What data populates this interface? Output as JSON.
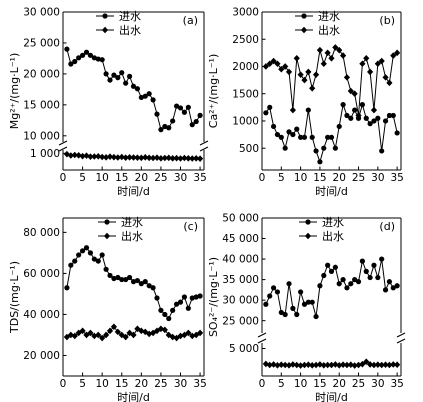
{
  "legend": {
    "inflow": "进水",
    "outflow": "出水"
  },
  "chart_data": [
    {
      "type": "line",
      "panel_label": "(a)",
      "xlabel": "时间/d",
      "ylabel": "Mg²⁺/(mg·L⁻¹)",
      "x_ticks": [
        "0",
        "5",
        "10",
        "15",
        "20",
        "25",
        "30",
        "35"
      ],
      "xlim": [
        0,
        36
      ],
      "axis_break": true,
      "upper_ylim": [
        9000,
        30000
      ],
      "upper_ticks": [
        {
          "v": 10000,
          "label": "10 000"
        },
        {
          "v": 15000,
          "label": "15 000"
        },
        {
          "v": 20000,
          "label": "20 000"
        },
        {
          "v": 25000,
          "label": "25 000"
        },
        {
          "v": 30000,
          "label": "30 000"
        }
      ],
      "lower_ylim": [
        0,
        1200
      ],
      "lower_ticks": [
        {
          "v": 1000,
          "label": "1 000"
        }
      ],
      "series": [
        {
          "name": "进水",
          "marker": "circle",
          "x": [
            1,
            2,
            3,
            4,
            5,
            6,
            7,
            8,
            9,
            10,
            11,
            12,
            13,
            14,
            15,
            16,
            17,
            18,
            19,
            20,
            21,
            22,
            23,
            24,
            25,
            26,
            27,
            28,
            29,
            30,
            31,
            32,
            33,
            34,
            35
          ],
          "y": [
            24000,
            21600,
            22000,
            22600,
            23000,
            23500,
            23000,
            22600,
            22400,
            22300,
            20000,
            19000,
            19800,
            19400,
            20200,
            18500,
            19600,
            18000,
            17600,
            16200,
            16400,
            16800,
            15800,
            13500,
            11000,
            11500,
            11300,
            12400,
            14800,
            14500,
            13800,
            14600,
            11800,
            12300,
            13300
          ]
        },
        {
          "name": "出水",
          "marker": "diamond",
          "x": [
            1,
            2,
            3,
            4,
            5,
            6,
            7,
            8,
            9,
            10,
            11,
            12,
            13,
            14,
            15,
            16,
            17,
            18,
            19,
            20,
            21,
            22,
            23,
            24,
            25,
            26,
            27,
            28,
            29,
            30,
            31,
            32,
            33,
            34,
            35
          ],
          "y": [
            950,
            870,
            900,
            880,
            830,
            860,
            800,
            810,
            820,
            780,
            760,
            800,
            770,
            750,
            780,
            740,
            760,
            750,
            740,
            730,
            760,
            730,
            720,
            740,
            700,
            720,
            730,
            700,
            710,
            690,
            720,
            700,
            690,
            700,
            680
          ]
        }
      ]
    },
    {
      "type": "line",
      "panel_label": "(b)",
      "xlabel": "时间/d",
      "ylabel": "Ca²⁺/(mg·L⁻¹)",
      "x_ticks": [
        "0",
        "5",
        "10",
        "15",
        "20",
        "25",
        "30",
        "35"
      ],
      "xlim": [
        0,
        36
      ],
      "ylim": [
        100,
        3000
      ],
      "y_ticks": [
        {
          "v": 500,
          "label": "500"
        },
        {
          "v": 1000,
          "label": "1000"
        },
        {
          "v": 1500,
          "label": "1500"
        },
        {
          "v": 2000,
          "label": "2000"
        },
        {
          "v": 2500,
          "label": "2500"
        },
        {
          "v": 3000,
          "label": "3000"
        }
      ],
      "series": [
        {
          "name": "进水",
          "marker": "circle",
          "x": [
            1,
            2,
            3,
            4,
            5,
            6,
            7,
            8,
            9,
            10,
            11,
            12,
            13,
            14,
            15,
            16,
            17,
            18,
            19,
            20,
            21,
            22,
            23,
            24,
            25,
            26,
            27,
            28,
            29,
            30,
            31,
            32,
            33,
            34,
            35
          ],
          "y": [
            1150,
            1250,
            900,
            750,
            700,
            500,
            800,
            750,
            850,
            700,
            700,
            1200,
            700,
            450,
            250,
            500,
            700,
            700,
            500,
            900,
            1300,
            1100,
            1050,
            1200,
            1050,
            1300,
            1050,
            950,
            1000,
            1050,
            450,
            1000,
            1100,
            1100,
            780
          ]
        },
        {
          "name": "出水",
          "marker": "diamond",
          "x": [
            1,
            2,
            3,
            4,
            5,
            6,
            7,
            8,
            9,
            10,
            11,
            12,
            13,
            14,
            15,
            16,
            17,
            18,
            19,
            20,
            21,
            22,
            23,
            24,
            25,
            26,
            27,
            28,
            29,
            30,
            31,
            32,
            33,
            34,
            35
          ],
          "y": [
            2000,
            2050,
            2100,
            2050,
            1950,
            2000,
            1900,
            1200,
            2150,
            1850,
            1750,
            1900,
            1600,
            1850,
            2300,
            2050,
            2250,
            2150,
            2350,
            2300,
            2200,
            1800,
            1550,
            1500,
            1100,
            2050,
            2150,
            1900,
            1200,
            2050,
            2100,
            1800,
            1700,
            2200,
            2250
          ]
        }
      ]
    },
    {
      "type": "line",
      "panel_label": "(c)",
      "xlabel": "时间/d",
      "ylabel": "TDS/(mg·L⁻¹)",
      "x_ticks": [
        "0",
        "5",
        "10",
        "15",
        "20",
        "25",
        "30",
        "35"
      ],
      "xlim": [
        0,
        36
      ],
      "ylim": [
        10000,
        87000
      ],
      "y_ticks": [
        {
          "v": 20000,
          "label": "20 000"
        },
        {
          "v": 40000,
          "label": "40 000"
        },
        {
          "v": 60000,
          "label": "60 000"
        },
        {
          "v": 80000,
          "label": "80 000"
        }
      ],
      "series": [
        {
          "name": "进水",
          "marker": "circle",
          "x": [
            1,
            2,
            3,
            4,
            5,
            6,
            7,
            8,
            9,
            10,
            11,
            12,
            13,
            14,
            15,
            16,
            17,
            18,
            19,
            20,
            21,
            22,
            23,
            24,
            25,
            26,
            27,
            28,
            29,
            30,
            31,
            32,
            33,
            34,
            35
          ],
          "y": [
            53000,
            64000,
            66000,
            69000,
            71000,
            72500,
            70000,
            67000,
            66000,
            69000,
            62000,
            59000,
            57500,
            58000,
            57000,
            57000,
            58000,
            56000,
            56500,
            55000,
            56000,
            54000,
            53000,
            48000,
            42000,
            40000,
            38000,
            42000,
            45000,
            46000,
            48500,
            43000,
            48000,
            48500,
            49000
          ]
        },
        {
          "name": "出水",
          "marker": "diamond",
          "x": [
            1,
            2,
            3,
            4,
            5,
            6,
            7,
            8,
            9,
            10,
            11,
            12,
            13,
            14,
            15,
            16,
            17,
            18,
            19,
            20,
            21,
            22,
            23,
            24,
            25,
            26,
            27,
            28,
            29,
            30,
            31,
            32,
            33,
            34,
            35
          ],
          "y": [
            29000,
            30000,
            29500,
            31000,
            32000,
            30000,
            31000,
            29500,
            30000,
            28500,
            30000,
            32000,
            34000,
            31500,
            30000,
            29000,
            31000,
            30000,
            33000,
            32000,
            31500,
            30500,
            31000,
            32000,
            33000,
            32500,
            30000,
            29000,
            28500,
            29500,
            30000,
            31000,
            29500,
            30000,
            31000
          ]
        }
      ]
    },
    {
      "type": "line",
      "panel_label": "(d)",
      "xlabel": "时间/d",
      "ylabel": "SO₄²⁻/(mg·L⁻¹)",
      "x_ticks": [
        "0",
        "5",
        "10",
        "15",
        "20",
        "25",
        "30",
        "35"
      ],
      "xlim": [
        0,
        36
      ],
      "axis_break": true,
      "upper_ylim": [
        22000,
        50000
      ],
      "upper_ticks": [
        {
          "v": 25000,
          "label": "25 000"
        },
        {
          "v": 30000,
          "label": "30 000"
        },
        {
          "v": 35000,
          "label": "35 000"
        },
        {
          "v": 40000,
          "label": "40 000"
        },
        {
          "v": 45000,
          "label": "45 000"
        },
        {
          "v": 50000,
          "label": "50 000"
        }
      ],
      "lower_ylim": [
        0,
        6000
      ],
      "lower_ticks": [
        {
          "v": 5000,
          "label": "5 000"
        }
      ],
      "series": [
        {
          "name": "进水",
          "marker": "circle",
          "x": [
            1,
            2,
            3,
            4,
            5,
            6,
            7,
            8,
            9,
            10,
            11,
            12,
            13,
            14,
            15,
            16,
            17,
            18,
            19,
            20,
            21,
            22,
            23,
            24,
            25,
            26,
            27,
            28,
            29,
            30,
            31,
            32,
            33,
            34,
            35
          ],
          "y": [
            29000,
            31000,
            33000,
            32000,
            27000,
            26500,
            34000,
            28000,
            26500,
            32000,
            29000,
            29500,
            29500,
            26000,
            33500,
            36000,
            38500,
            37000,
            38000,
            34000,
            35000,
            33000,
            34000,
            35000,
            34500,
            39500,
            37000,
            35500,
            38500,
            35500,
            40000,
            32500,
            34500,
            33000,
            33500
          ]
        },
        {
          "name": "出水",
          "marker": "diamond",
          "x": [
            1,
            2,
            3,
            4,
            5,
            6,
            7,
            8,
            9,
            10,
            11,
            12,
            13,
            14,
            15,
            16,
            17,
            18,
            19,
            20,
            21,
            22,
            23,
            24,
            25,
            26,
            27,
            28,
            29,
            30,
            31,
            32,
            33,
            34,
            35
          ],
          "y": [
            2200,
            2000,
            2100,
            1950,
            2050,
            2000,
            1950,
            2100,
            2000,
            1900,
            2000,
            2050,
            1950,
            2000,
            2100,
            1950,
            2000,
            2000,
            2100,
            1950,
            2050,
            2000,
            2050,
            1900,
            2000,
            2150,
            2600,
            2100,
            2000,
            2050,
            2000,
            2050,
            2000,
            2100,
            2050
          ]
        }
      ]
    }
  ]
}
